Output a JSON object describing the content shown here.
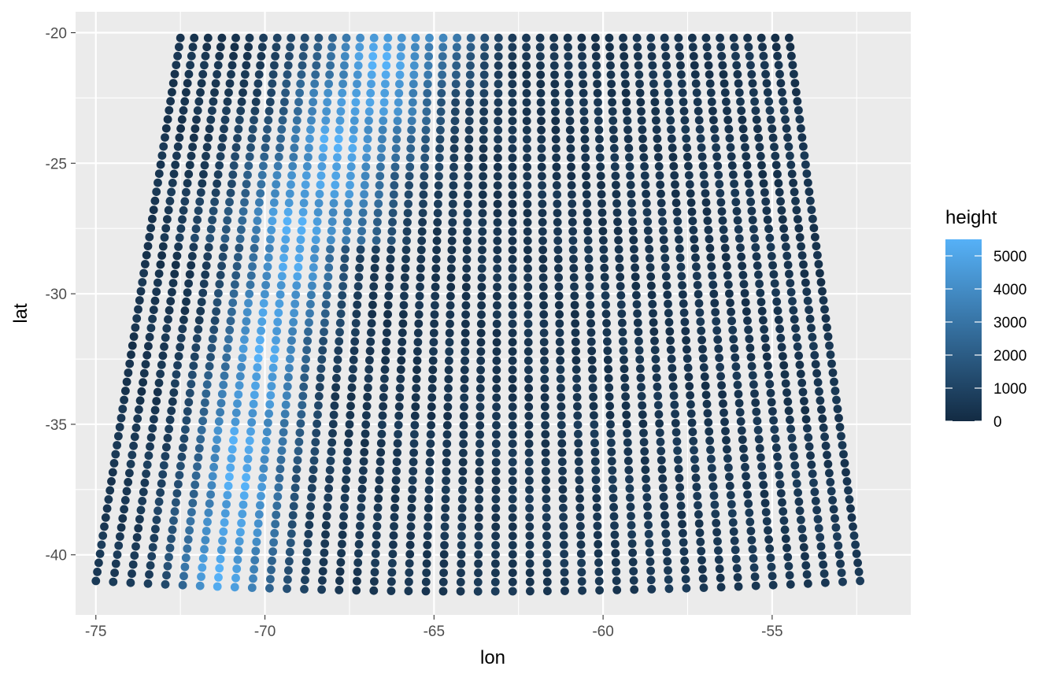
{
  "chart_data": {
    "type": "scatter",
    "title": "",
    "xlabel": "lon",
    "ylabel": "lat",
    "xlim": [
      -75.6,
      -50.9
    ],
    "ylim": [
      -42.3,
      -19.2
    ],
    "x_ticks": [
      -75,
      -70,
      -65,
      -60,
      -55
    ],
    "y_ticks": [
      -20,
      -25,
      -30,
      -35,
      -40
    ],
    "x_tick_labels": [
      "-75",
      "-70",
      "-65",
      "-60",
      "-55"
    ],
    "y_tick_labels": [
      "-20",
      "-25",
      "-30",
      "-35",
      "-40"
    ],
    "grid": true,
    "grid_extent": {
      "columns": 45,
      "rows": 61,
      "top_lat": -20.2,
      "bottom_lat_edge": -41.0,
      "bottom_lat_center": -41.4,
      "top_lon_range": [
        -72.5,
        -54.5
      ],
      "bottom_lon_range": [
        -75.0,
        -52.4
      ]
    },
    "color_scale": {
      "title": "height",
      "min": 0,
      "max": 5500,
      "low_color": "#132B43",
      "high_color": "#56B1F7",
      "breaks": [
        0,
        1000,
        2000,
        3000,
        4000,
        5000
      ],
      "break_labels": [
        "0",
        "1000",
        "2000",
        "3000",
        "4000",
        "5000"
      ],
      "legend_position": "right"
    },
    "height_pattern": {
      "ridge_axis": [
        [
          -71.2,
          -41
        ],
        [
          -70.2,
          -33
        ],
        [
          -69.5,
          -30
        ],
        [
          -68.8,
          -27
        ],
        [
          -67.6,
          -24
        ],
        [
          -66.8,
          -22
        ],
        [
          -66.0,
          -20
        ]
      ],
      "peak_height_m": 5000,
      "description": "Andes mountain range shown as high values along a north-south ridge; remaining area near 0-800 m"
    }
  }
}
